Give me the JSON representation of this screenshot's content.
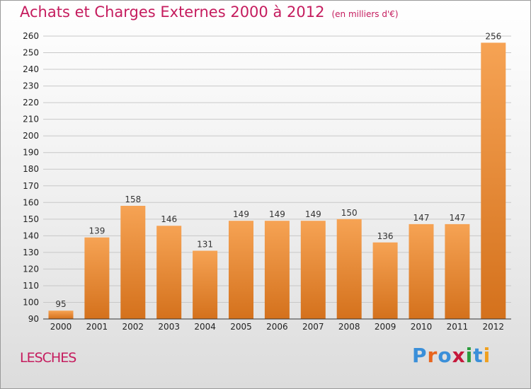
{
  "title": "Achats et Charges Externes 2000 à 2012",
  "unit": "(en milliers d'€)",
  "commune": "LESCHES",
  "logo": {
    "text": "Proxiti",
    "letter_colors": [
      "#3a8fd9",
      "#e8651e",
      "#3a8fd9",
      "#c5183b",
      "#2a9c3c",
      "#3a8fd9",
      "#f0a01e"
    ]
  },
  "chart_data": {
    "type": "bar",
    "title": "Achats et Charges Externes 2000 à 2012",
    "subtitle": "(en milliers d'€)",
    "xlabel": "",
    "ylabel": "",
    "categories": [
      "2000",
      "2001",
      "2002",
      "2003",
      "2004",
      "2005",
      "2006",
      "2007",
      "2008",
      "2009",
      "2010",
      "2011",
      "2012"
    ],
    "values": [
      95,
      139,
      158,
      146,
      131,
      149,
      149,
      149,
      150,
      136,
      147,
      147,
      256
    ],
    "ylim": [
      90,
      260
    ],
    "yticks": [
      90,
      100,
      110,
      120,
      130,
      140,
      150,
      160,
      170,
      180,
      190,
      200,
      210,
      220,
      230,
      240,
      250,
      260
    ],
    "grid": true,
    "bar_color_top": "#f6a354",
    "bar_color_bottom": "#d4711c"
  }
}
